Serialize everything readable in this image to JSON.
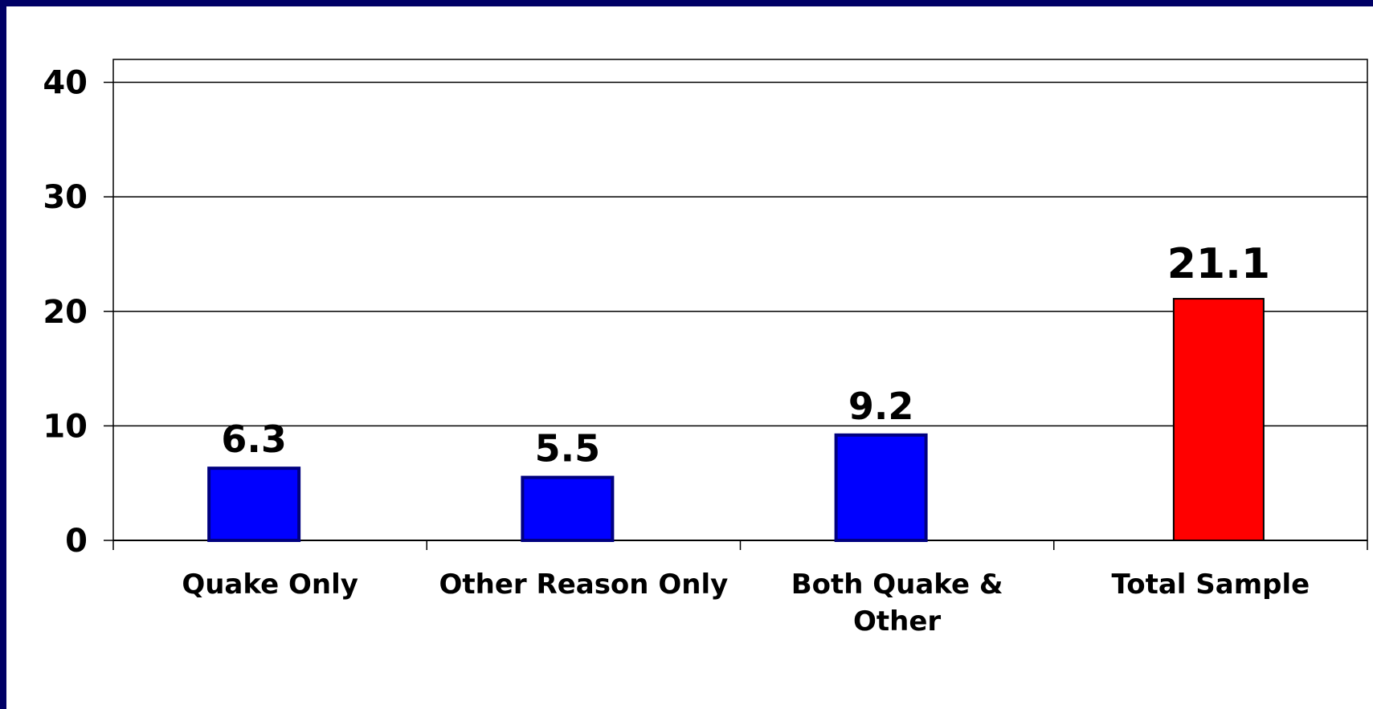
{
  "chart_data": {
    "type": "bar",
    "categories": [
      "Quake Only",
      "Other Reason Only",
      "Both Quake & Other",
      "Total Sample"
    ],
    "category_lines": [
      [
        "Quake Only"
      ],
      [
        "Other Reason Only"
      ],
      [
        "Both Quake &",
        "Other"
      ],
      [
        "Total Sample"
      ]
    ],
    "values": [
      6.3,
      5.5,
      9.2,
      21.1
    ],
    "data_labels": [
      "6.3",
      "5.5",
      "9.2",
      "21.1"
    ],
    "bar_colors": [
      "#0000ff",
      "#0000ff",
      "#0000ff",
      "#ff0000"
    ],
    "bar_border_colors": [
      "#000080",
      "#000080",
      "#000080",
      "#000000"
    ],
    "ylim": [
      0,
      42
    ],
    "yticks": [
      0,
      10,
      20,
      30,
      40
    ],
    "grid": true,
    "title": "",
    "xlabel": "",
    "ylabel": ""
  },
  "colors": {
    "frame_border": "#000066",
    "background": "#ffffff"
  }
}
